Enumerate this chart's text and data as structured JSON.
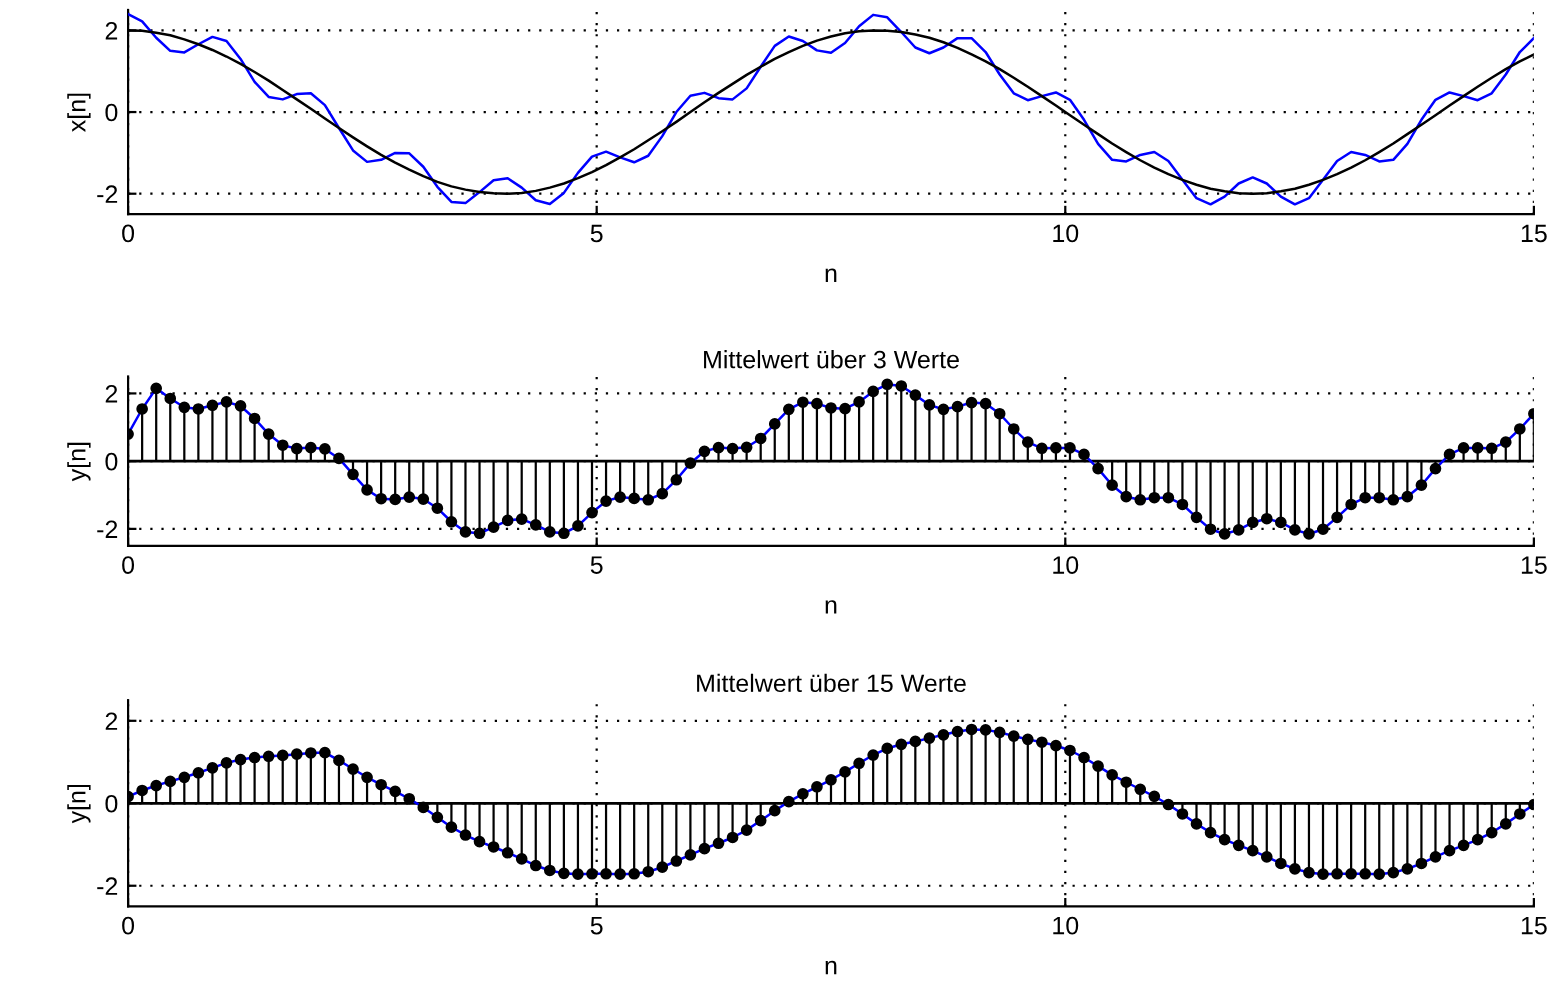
{
  "chart_data": [
    {
      "type": "line",
      "ylabel": "x[n]",
      "xlabel": "n",
      "xlim": [
        0,
        15
      ],
      "ylim": [
        -2.5,
        2.5
      ],
      "xticks": [
        0,
        5,
        10,
        15
      ],
      "yticks": [
        -2,
        0,
        2
      ],
      "grid": true,
      "x": [
        0,
        0.15,
        0.3,
        0.45,
        0.6,
        0.75,
        0.9,
        1.05,
        1.2,
        1.35,
        1.5,
        1.65,
        1.8,
        1.95,
        2.1,
        2.25,
        2.4,
        2.55,
        2.7,
        2.85,
        3,
        3.15,
        3.3,
        3.45,
        3.6,
        3.75,
        3.9,
        4.05,
        4.2,
        4.35,
        4.5,
        4.65,
        4.8,
        4.95,
        5.1,
        5.25,
        5.4,
        5.55,
        5.7,
        5.85,
        6,
        6.15,
        6.3,
        6.45,
        6.6,
        6.75,
        6.9,
        7.05,
        7.2,
        7.35,
        7.5,
        7.65,
        7.8,
        7.95,
        8.1,
        8.25,
        8.4,
        8.55,
        8.7,
        8.85,
        9,
        9.15,
        9.3,
        9.45,
        9.6,
        9.75,
        9.9,
        10.05,
        10.2,
        10.35,
        10.5,
        10.65,
        10.8,
        10.95,
        11.1,
        11.25,
        11.4,
        11.55,
        11.7,
        11.85,
        12,
        12.15,
        12.3,
        12.45,
        12.6,
        12.75,
        12.9,
        13.05,
        13.2,
        13.35,
        13.5,
        13.65,
        13.8,
        13.95,
        14.1,
        14.25,
        14.4,
        14.55,
        14.7,
        14.85,
        15
      ],
      "series": [
        {
          "color": "#0000ff",
          "values": [
            2.4,
            2.22,
            1.82,
            1.5,
            1.46,
            1.66,
            1.84,
            1.74,
            1.3,
            0.74,
            0.37,
            0.31,
            0.44,
            0.46,
            0.17,
            -0.39,
            -0.94,
            -1.22,
            -1.17,
            -1.0,
            -1.01,
            -1.34,
            -1.83,
            -2.2,
            -2.23,
            -1.96,
            -1.67,
            -1.62,
            -1.85,
            -2.16,
            -2.25,
            -1.98,
            -1.49,
            -1.09,
            -0.97,
            -1.11,
            -1.23,
            -1.07,
            -0.59,
            0.0,
            0.4,
            0.47,
            0.34,
            0.31,
            0.58,
            1.11,
            1.62,
            1.85,
            1.74,
            1.51,
            1.45,
            1.69,
            2.1,
            2.38,
            2.32,
            1.96,
            1.58,
            1.44,
            1.58,
            1.81,
            1.81,
            1.47,
            0.92,
            0.46,
            0.29,
            0.39,
            0.48,
            0.3,
            -0.19,
            -0.78,
            -1.17,
            -1.21,
            -1.05,
            -0.98,
            -1.2,
            -1.66,
            -2.11,
            -2.26,
            -2.07,
            -1.75,
            -1.6,
            -1.75,
            -2.07,
            -2.26,
            -2.11,
            -1.66,
            -1.2,
            -0.98,
            -1.05,
            -1.21,
            -1.17,
            -0.78,
            -0.19,
            0.3,
            0.48,
            0.39,
            0.29,
            0.46,
            0.92,
            1.47,
            1.81
          ]
        },
        {
          "color": "#000000",
          "values": [
            2.0,
            1.99,
            1.94,
            1.88,
            1.78,
            1.66,
            1.52,
            1.36,
            1.18,
            0.98,
            0.77,
            0.54,
            0.31,
            0.08,
            -0.16,
            -0.39,
            -0.62,
            -0.84,
            -1.05,
            -1.24,
            -1.41,
            -1.57,
            -1.71,
            -1.82,
            -1.9,
            -1.96,
            -1.99,
            -2.0,
            -1.98,
            -1.93,
            -1.85,
            -1.75,
            -1.62,
            -1.47,
            -1.3,
            -1.11,
            -0.91,
            -0.69,
            -0.47,
            -0.24,
            0,
            0.24,
            0.47,
            0.69,
            0.91,
            1.11,
            1.3,
            1.47,
            1.62,
            1.75,
            1.85,
            1.93,
            1.98,
            2.0,
            1.99,
            1.96,
            1.9,
            1.82,
            1.71,
            1.57,
            1.41,
            1.24,
            1.05,
            0.84,
            0.62,
            0.39,
            0.16,
            -0.08,
            -0.31,
            -0.54,
            -0.77,
            -0.98,
            -1.18,
            -1.36,
            -1.52,
            -1.66,
            -1.78,
            -1.88,
            -1.94,
            -1.99,
            -2.0,
            -1.99,
            -1.94,
            -1.88,
            -1.78,
            -1.66,
            -1.52,
            -1.36,
            -1.18,
            -0.98,
            -0.77,
            -0.54,
            -0.31,
            -0.08,
            0.16,
            0.39,
            0.62,
            0.84,
            1.05,
            1.24,
            1.41
          ]
        }
      ]
    },
    {
      "type": "lollipop",
      "title": "Mittelwert über 3 Werte",
      "ylabel": "y[n]",
      "xlabel": "n",
      "xlim": [
        0,
        15
      ],
      "ylim": [
        -2.5,
        2.5
      ],
      "xticks": [
        0,
        5,
        10,
        15
      ],
      "yticks": [
        -2,
        0,
        2
      ],
      "grid": true,
      "x": [
        0,
        0.15,
        0.3,
        0.45,
        0.6,
        0.75,
        0.9,
        1.05,
        1.2,
        1.35,
        1.5,
        1.65,
        1.8,
        1.95,
        2.1,
        2.25,
        2.4,
        2.55,
        2.7,
        2.85,
        3,
        3.15,
        3.3,
        3.45,
        3.6,
        3.75,
        3.9,
        4.05,
        4.2,
        4.35,
        4.5,
        4.65,
        4.8,
        4.95,
        5.1,
        5.25,
        5.4,
        5.55,
        5.7,
        5.85,
        6,
        6.15,
        6.3,
        6.45,
        6.6,
        6.75,
        6.9,
        7.05,
        7.2,
        7.35,
        7.5,
        7.65,
        7.8,
        7.95,
        8.1,
        8.25,
        8.4,
        8.55,
        8.7,
        8.85,
        9,
        9.15,
        9.3,
        9.45,
        9.6,
        9.75,
        9.9,
        10.05,
        10.2,
        10.35,
        10.5,
        10.65,
        10.8,
        10.95,
        11.1,
        11.25,
        11.4,
        11.55,
        11.7,
        11.85,
        12,
        12.15,
        12.3,
        12.45,
        12.6,
        12.75,
        12.9,
        13.05,
        13.2,
        13.35,
        13.5,
        13.65,
        13.8,
        13.95,
        14.1,
        14.25,
        14.4,
        14.55,
        14.7,
        14.85,
        15
      ],
      "series": [
        {
          "type": "line",
          "color": "#0000ff",
          "values": [
            0.8,
            1.54,
            2.15,
            1.85,
            1.59,
            1.54,
            1.65,
            1.75,
            1.63,
            1.26,
            0.8,
            0.47,
            0.37,
            0.4,
            0.36,
            0.08,
            -0.39,
            -0.85,
            -1.11,
            -1.13,
            -1.06,
            -1.12,
            -1.39,
            -1.79,
            -2.09,
            -2.13,
            -1.95,
            -1.75,
            -1.71,
            -1.88,
            -2.09,
            -2.13,
            -1.91,
            -1.52,
            -1.18,
            -1.06,
            -1.1,
            -1.14,
            -0.96,
            -0.55,
            -0.06,
            0.29,
            0.4,
            0.37,
            0.41,
            0.67,
            1.1,
            1.53,
            1.74,
            1.7,
            1.57,
            1.55,
            1.75,
            2.06,
            2.27,
            2.22,
            1.95,
            1.66,
            1.53,
            1.61,
            1.73,
            1.7,
            1.4,
            0.95,
            0.56,
            0.38,
            0.39,
            0.39,
            0.2,
            -0.22,
            -0.71,
            -1.05,
            -1.14,
            -1.08,
            -1.08,
            -1.28,
            -1.66,
            -2.01,
            -2.15,
            -2.03,
            -1.81,
            -1.7,
            -1.81,
            -2.03,
            -2.15,
            -2.01,
            -1.66,
            -1.28,
            -1.08,
            -1.08,
            -1.14,
            -1.05,
            -0.71,
            -0.22,
            0.2,
            0.39,
            0.39,
            0.38,
            0.56,
            0.95,
            1.4
          ]
        },
        {
          "color": "#000000",
          "marker": "circle",
          "values": [
            0.8,
            1.54,
            2.15,
            1.85,
            1.59,
            1.54,
            1.65,
            1.75,
            1.63,
            1.26,
            0.8,
            0.47,
            0.37,
            0.4,
            0.36,
            0.08,
            -0.39,
            -0.85,
            -1.11,
            -1.13,
            -1.06,
            -1.12,
            -1.39,
            -1.79,
            -2.09,
            -2.13,
            -1.95,
            -1.75,
            -1.71,
            -1.88,
            -2.09,
            -2.13,
            -1.91,
            -1.52,
            -1.18,
            -1.06,
            -1.1,
            -1.14,
            -0.96,
            -0.55,
            -0.06,
            0.29,
            0.4,
            0.37,
            0.41,
            0.67,
            1.1,
            1.53,
            1.74,
            1.7,
            1.57,
            1.55,
            1.75,
            2.06,
            2.27,
            2.22,
            1.95,
            1.66,
            1.53,
            1.61,
            1.73,
            1.7,
            1.4,
            0.95,
            0.56,
            0.38,
            0.39,
            0.39,
            0.2,
            -0.22,
            -0.71,
            -1.05,
            -1.14,
            -1.08,
            -1.08,
            -1.28,
            -1.66,
            -2.01,
            -2.15,
            -2.03,
            -1.81,
            -1.7,
            -1.81,
            -2.03,
            -2.15,
            -2.01,
            -1.66,
            -1.28,
            -1.08,
            -1.08,
            -1.14,
            -1.05,
            -0.71,
            -0.22,
            0.2,
            0.39,
            0.39,
            0.38,
            0.56,
            0.95,
            1.4
          ]
        }
      ]
    },
    {
      "type": "lollipop",
      "title": "Mittelwert über 15 Werte",
      "ylabel": "y[n]",
      "xlabel": "n",
      "xlim": [
        0,
        15
      ],
      "ylim": [
        -2.5,
        2.5
      ],
      "xticks": [
        0,
        5,
        10,
        15
      ],
      "yticks": [
        -2,
        0,
        2
      ],
      "grid": true,
      "x": [
        0,
        0.15,
        0.3,
        0.45,
        0.6,
        0.75,
        0.9,
        1.05,
        1.2,
        1.35,
        1.5,
        1.65,
        1.8,
        1.95,
        2.1,
        2.25,
        2.4,
        2.55,
        2.7,
        2.85,
        3,
        3.15,
        3.3,
        3.45,
        3.6,
        3.75,
        3.9,
        4.05,
        4.2,
        4.35,
        4.5,
        4.65,
        4.8,
        4.95,
        5.1,
        5.25,
        5.4,
        5.55,
        5.7,
        5.85,
        6,
        6.15,
        6.3,
        6.45,
        6.6,
        6.75,
        6.9,
        7.05,
        7.2,
        7.35,
        7.5,
        7.65,
        7.8,
        7.95,
        8.1,
        8.25,
        8.4,
        8.55,
        8.7,
        8.85,
        9,
        9.15,
        9.3,
        9.45,
        9.6,
        9.75,
        9.9,
        10.05,
        10.2,
        10.35,
        10.5,
        10.65,
        10.8,
        10.95,
        11.1,
        11.25,
        11.4,
        11.55,
        11.7,
        11.85,
        12,
        12.15,
        12.3,
        12.45,
        12.6,
        12.75,
        12.9,
        13.05,
        13.2,
        13.35,
        13.5,
        13.65,
        13.8,
        13.95,
        14.1,
        14.25,
        14.4,
        14.55,
        14.7,
        14.85,
        15
      ],
      "series": [
        {
          "type": "line",
          "color": "#0000ff",
          "values": [
            0.16,
            0.31,
            0.43,
            0.53,
            0.63,
            0.74,
            0.86,
            0.98,
            1.06,
            1.11,
            1.14,
            1.16,
            1.19,
            1.22,
            1.23,
            1.04,
            0.83,
            0.63,
            0.45,
            0.29,
            0.11,
            -0.1,
            -0.34,
            -0.58,
            -0.77,
            -0.93,
            -1.06,
            -1.2,
            -1.35,
            -1.51,
            -1.63,
            -1.7,
            -1.72,
            -1.71,
            -1.71,
            -1.72,
            -1.71,
            -1.66,
            -1.55,
            -1.4,
            -1.25,
            -1.1,
            -0.97,
            -0.83,
            -0.65,
            -0.42,
            -0.18,
            0.04,
            0.23,
            0.4,
            0.57,
            0.76,
            0.97,
            1.17,
            1.33,
            1.43,
            1.5,
            1.58,
            1.66,
            1.74,
            1.79,
            1.78,
            1.72,
            1.63,
            1.55,
            1.48,
            1.4,
            1.28,
            1.11,
            0.9,
            0.69,
            0.51,
            0.34,
            0.17,
            -0.03,
            -0.26,
            -0.5,
            -0.71,
            -0.88,
            -1.02,
            -1.15,
            -1.3,
            -1.46,
            -1.59,
            -1.68,
            -1.72,
            -1.71,
            -1.71,
            -1.71,
            -1.72,
            -1.68,
            -1.59,
            -1.46,
            -1.3,
            -1.15,
            -1.02,
            -0.88,
            -0.71,
            -0.5,
            -0.26,
            -0.03
          ]
        },
        {
          "color": "#000000",
          "marker": "circle",
          "values": [
            0.16,
            0.31,
            0.43,
            0.53,
            0.63,
            0.74,
            0.86,
            0.98,
            1.06,
            1.11,
            1.14,
            1.16,
            1.19,
            1.22,
            1.23,
            1.04,
            0.83,
            0.63,
            0.45,
            0.29,
            0.11,
            -0.1,
            -0.34,
            -0.58,
            -0.77,
            -0.93,
            -1.06,
            -1.2,
            -1.35,
            -1.51,
            -1.63,
            -1.7,
            -1.72,
            -1.71,
            -1.71,
            -1.72,
            -1.71,
            -1.66,
            -1.55,
            -1.4,
            -1.25,
            -1.1,
            -0.97,
            -0.83,
            -0.65,
            -0.42,
            -0.18,
            0.04,
            0.23,
            0.4,
            0.57,
            0.76,
            0.97,
            1.17,
            1.33,
            1.43,
            1.5,
            1.58,
            1.66,
            1.74,
            1.79,
            1.78,
            1.72,
            1.63,
            1.55,
            1.48,
            1.4,
            1.28,
            1.11,
            0.9,
            0.69,
            0.51,
            0.34,
            0.17,
            -0.03,
            -0.26,
            -0.5,
            -0.71,
            -0.88,
            -1.02,
            -1.15,
            -1.3,
            -1.46,
            -1.59,
            -1.68,
            -1.72,
            -1.71,
            -1.71,
            -1.71,
            -1.72,
            -1.68,
            -1.59,
            -1.46,
            -1.3,
            -1.15,
            -1.02,
            -0.88,
            -0.71,
            -0.5,
            -0.26,
            -0.03
          ]
        }
      ]
    }
  ]
}
